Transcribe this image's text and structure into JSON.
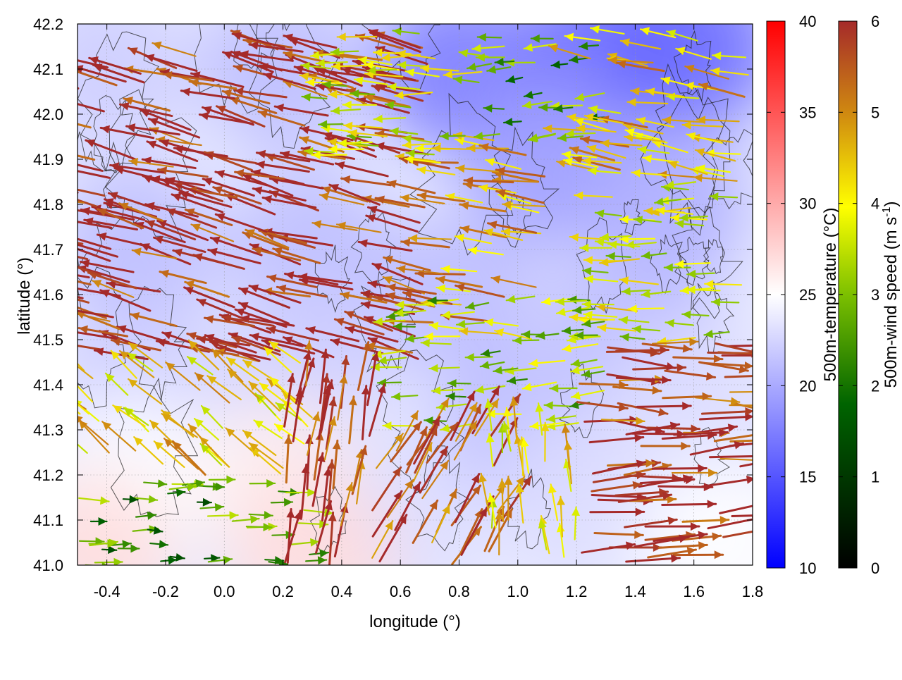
{
  "chart_data": {
    "type": "heatmap",
    "title": "",
    "xlabel": "longitude (°)",
    "ylabel": "latitude (°)",
    "xlim": [
      -0.5,
      1.8
    ],
    "ylim": [
      41.0,
      42.2
    ],
    "x_ticks": [
      "-0.4",
      "-0.2",
      "0.0",
      "0.2",
      "0.4",
      "0.6",
      "0.8",
      "1.0",
      "1.2",
      "1.4",
      "1.6",
      "1.8"
    ],
    "y_ticks": [
      "41.0",
      "41.1",
      "41.2",
      "41.3",
      "41.4",
      "41.5",
      "41.6",
      "41.7",
      "41.8",
      "41.9",
      "42.0",
      "42.1",
      "42.2"
    ],
    "grid": true,
    "layers": [
      {
        "kind": "filled-field",
        "quantity": "500m-temperature",
        "unit": "°C"
      },
      {
        "kind": "vector-arrows",
        "quantity": "500m-wind speed",
        "unit": "m s-1"
      },
      {
        "kind": "contour-lines",
        "quantity": "terrain"
      }
    ],
    "colorbars": [
      {
        "label": "500m-temperature (°C)",
        "range": [
          10,
          40
        ],
        "ticks": [
          "10",
          "15",
          "20",
          "25",
          "30",
          "35",
          "40"
        ],
        "colors": [
          "#0000ff",
          "#ffffff",
          "#ff0000"
        ]
      },
      {
        "label": "500m-wind speed (m s",
        "label_sup": "-1",
        "label_end": ")",
        "range": [
          0,
          6
        ],
        "ticks": [
          "0",
          "1",
          "2",
          "3",
          "4",
          "5",
          "6"
        ],
        "colors": [
          "#000000",
          "#006400",
          "#7cc000",
          "#ffff00",
          "#d08a10",
          "#a52a2a"
        ]
      }
    ],
    "temperature_field": [
      {
        "lon": -0.4,
        "lat": 42.1,
        "t": 22
      },
      {
        "lon": 0.2,
        "lat": 42.1,
        "t": 21
      },
      {
        "lon": 0.8,
        "lat": 42.1,
        "t": 17
      },
      {
        "lon": 1.3,
        "lat": 42.15,
        "t": 16
      },
      {
        "lon": 1.6,
        "lat": 42.15,
        "t": 16
      },
      {
        "lon": 1.1,
        "lat": 41.9,
        "t": 19
      },
      {
        "lon": 1.5,
        "lat": 41.8,
        "t": 20
      },
      {
        "lon": -0.3,
        "lat": 41.7,
        "t": 21
      },
      {
        "lon": 0.3,
        "lat": 41.7,
        "t": 21
      },
      {
        "lon": 0.8,
        "lat": 41.6,
        "t": 21
      },
      {
        "lon": 1.4,
        "lat": 41.55,
        "t": 21
      },
      {
        "lon": -0.3,
        "lat": 41.4,
        "t": 22
      },
      {
        "lon": 0.3,
        "lat": 41.45,
        "t": 22
      },
      {
        "lon": 1.0,
        "lat": 41.3,
        "t": 21
      },
      {
        "lon": 1.6,
        "lat": 41.35,
        "t": 23
      },
      {
        "lon": -0.3,
        "lat": 41.2,
        "t": 25
      },
      {
        "lon": 0.2,
        "lat": 41.2,
        "t": 26
      },
      {
        "lon": 0.6,
        "lat": 41.1,
        "t": 23
      },
      {
        "lon": 1.2,
        "lat": 41.15,
        "t": 23
      },
      {
        "lon": 1.7,
        "lat": 41.05,
        "t": 25
      },
      {
        "lon": -0.45,
        "lat": 41.02,
        "t": 27
      },
      {
        "lon": 0.3,
        "lat": 41.02,
        "t": 27
      }
    ],
    "wind_regions": [
      {
        "lon": [
          -0.5,
          0.7
        ],
        "lat": [
          41.45,
          42.15
        ],
        "angle_deg": 165,
        "speed": 5.9
      },
      {
        "lon": [
          0.7,
          1.1
        ],
        "lat": [
          41.5,
          41.95
        ],
        "angle_deg": 172,
        "speed": 4.5
      },
      {
        "lon": [
          0.3,
          0.9
        ],
        "lat": [
          41.9,
          42.18
        ],
        "angle_deg": 178,
        "speed": 3.2
      },
      {
        "lon": [
          0.9,
          1.3
        ],
        "lat": [
          41.95,
          42.18
        ],
        "angle_deg": 185,
        "speed": 2.2
      },
      {
        "lon": [
          1.2,
          1.8
        ],
        "lat": [
          41.85,
          42.18
        ],
        "angle_deg": 170,
        "speed": 4.2
      },
      {
        "lon": [
          1.3,
          1.8
        ],
        "lat": [
          41.5,
          41.85
        ],
        "angle_deg": 180,
        "speed": 3.3
      },
      {
        "lon": [
          0.6,
          1.3
        ],
        "lat": [
          41.3,
          41.6
        ],
        "angle_deg": 185,
        "speed": 2.6
      },
      {
        "lon": [
          1.2,
          1.8
        ],
        "lat": [
          41.3,
          41.5
        ],
        "angle_deg": -5,
        "speed": 5.7
      },
      {
        "lon": [
          1.2,
          1.8
        ],
        "lat": [
          41.0,
          41.3
        ],
        "angle_deg": 5,
        "speed": 5.9
      },
      {
        "lon": [
          -0.5,
          0.3
        ],
        "lat": [
          41.2,
          41.45
        ],
        "angle_deg": 140,
        "speed": 4.0
      },
      {
        "lon": [
          -0.5,
          0.3
        ],
        "lat": [
          41.0,
          41.2
        ],
        "angle_deg": 0,
        "speed": 2.0
      },
      {
        "lon": [
          0.2,
          0.5
        ],
        "lat": [
          41.0,
          41.4
        ],
        "angle_deg": 80,
        "speed": 5.8
      },
      {
        "lon": [
          0.5,
          0.95
        ],
        "lat": [
          41.0,
          41.3
        ],
        "angle_deg": 60,
        "speed": 5.5
      },
      {
        "lon": [
          0.9,
          1.2
        ],
        "lat": [
          41.0,
          41.3
        ],
        "angle_deg": 95,
        "speed": 3.8
      }
    ]
  }
}
